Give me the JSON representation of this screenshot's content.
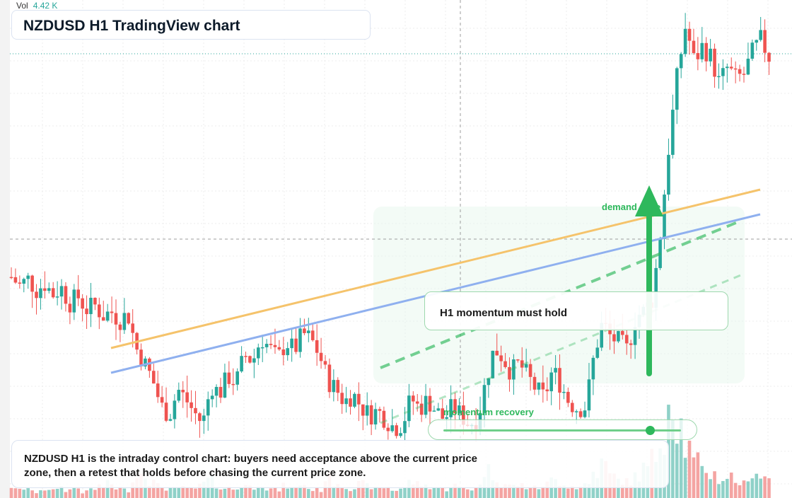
{
  "header": {
    "title": "NZDUSD H1 TradingView chart"
  },
  "volume_readout": {
    "label": "Vol",
    "value": "4.42 K"
  },
  "annotations": {
    "momentum_box": "H1 momentum must hold",
    "momentum_slider_label": "momentum recovery",
    "momentum_slider_level": 0.87,
    "demand_label": "demand zone",
    "note": "NZDUSD H1 is the intraday control chart: buyers need acceptance above the current price zone, then a retest that holds before chasing the current price zone."
  },
  "colors": {
    "up": "#26a69a",
    "down": "#ef5350",
    "volume_up": "#8fd1c8",
    "volume_down": "#f4a4a2",
    "upper_trendline": "#f5c36b",
    "lower_trendline": "#8fb0ef",
    "projection": "#2eb85c",
    "zone_fill": "#eaf7ee"
  },
  "chart_data": {
    "type": "candlestick",
    "symbol": "NZDUSD",
    "timeframe": "H1",
    "ylim": [
      0,
      100
    ],
    "close_path": [
      88,
      84,
      87,
      82,
      85,
      80,
      83,
      76,
      79,
      73,
      75,
      70,
      72,
      68,
      71,
      55,
      48,
      40,
      28,
      24,
      36,
      31,
      25,
      20,
      38,
      34,
      42,
      39,
      52,
      49,
      60,
      55,
      50,
      58,
      54,
      62,
      59,
      52,
      40,
      36,
      30,
      34,
      28,
      24,
      26,
      22,
      18,
      20,
      32,
      27,
      31,
      26,
      22,
      28,
      24,
      20,
      22,
      40,
      55,
      51,
      44,
      48,
      42,
      36,
      32,
      45,
      38,
      30,
      27,
      28,
      52,
      67,
      60,
      58,
      54,
      70,
      72,
      78,
      110,
      150,
      182,
      205,
      188,
      195,
      190,
      178,
      185,
      180,
      182,
      192,
      198,
      190
    ],
    "volume_level": [
      12,
      8,
      10,
      6,
      9,
      7,
      11,
      8,
      10,
      6,
      9,
      12,
      14,
      10,
      8,
      20,
      28,
      16,
      12,
      10,
      9,
      11,
      8,
      14,
      18,
      12,
      10,
      9,
      13,
      11,
      16,
      9,
      8,
      12,
      10,
      14,
      9,
      8,
      20,
      16,
      12,
      10,
      14,
      12,
      9,
      11,
      8,
      10,
      16,
      14,
      12,
      11,
      9,
      13,
      10,
      9,
      12,
      28,
      22,
      14,
      12,
      13,
      11,
      10,
      14,
      18,
      16,
      12,
      11,
      14,
      26,
      34,
      22,
      18,
      16,
      22,
      30,
      40,
      62,
      100,
      74,
      50,
      36,
      28,
      24,
      18,
      22,
      16,
      14,
      28,
      22,
      20
    ]
  }
}
